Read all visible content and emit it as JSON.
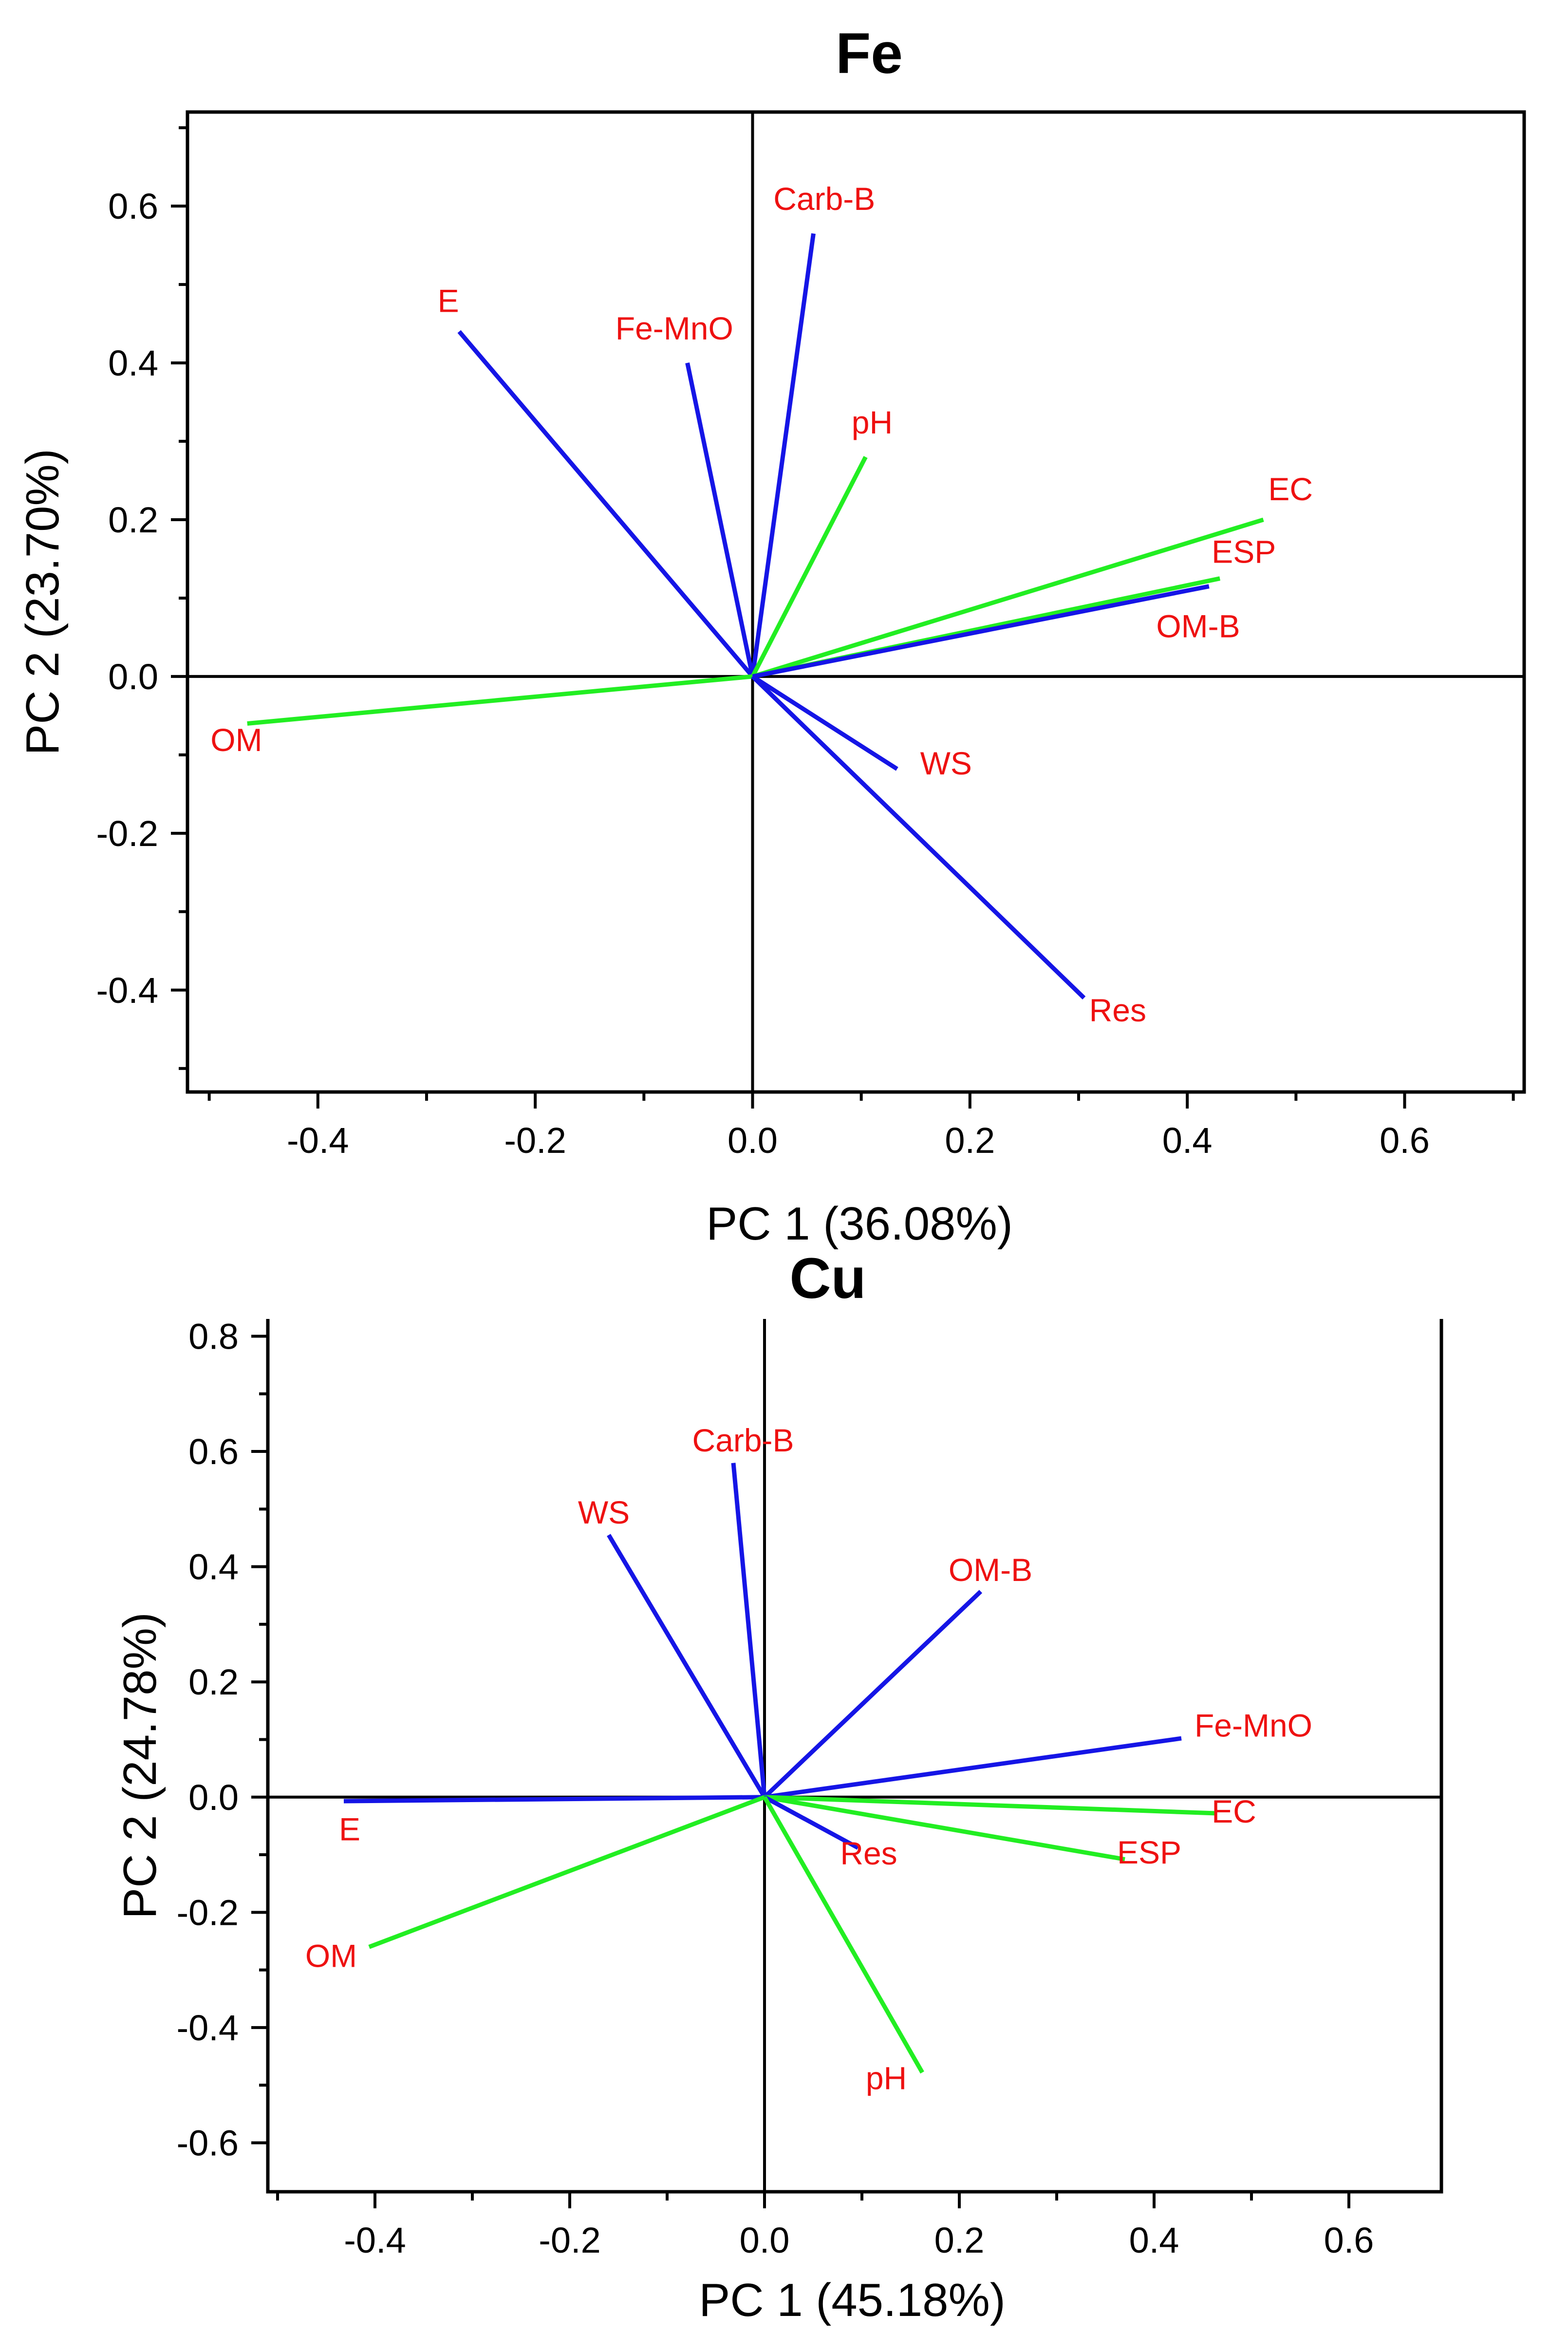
{
  "chart_data": [
    {
      "type": "biplot",
      "title": "Fe",
      "xlabel": "PC 1 (36.08%)",
      "ylabel": "PC 2 (23.70%)",
      "xlim": [
        -0.52,
        0.71
      ],
      "ylim": [
        -0.53,
        0.72
      ],
      "xticks": [
        -0.4,
        -0.2,
        0.0,
        0.2,
        0.4,
        0.6
      ],
      "xtick_labels": [
        "-0.4",
        "-0.2",
        "0.0",
        "0.2",
        "0.4",
        "0.6"
      ],
      "yticks": [
        -0.4,
        -0.2,
        0.0,
        0.2,
        0.4,
        0.6
      ],
      "ytick_labels": [
        "-0.4",
        "-0.2",
        "0.0",
        "0.2",
        "0.4",
        "0.6"
      ],
      "colors": {
        "blue": "#1515e6",
        "green": "#22ee22",
        "label": "#ee1111"
      },
      "vectors": [
        {
          "name": "E",
          "x": -0.27,
          "y": 0.44,
          "color": "blue",
          "lx": -0.28,
          "ly": 0.465
        },
        {
          "name": "Fe-MnO",
          "x": -0.06,
          "y": 0.4,
          "color": "blue",
          "lx": -0.072,
          "ly": 0.43
        },
        {
          "name": "Carb-B",
          "x": 0.056,
          "y": 0.565,
          "color": "blue",
          "lx": 0.066,
          "ly": 0.595
        },
        {
          "name": "pH",
          "x": 0.104,
          "y": 0.28,
          "color": "green",
          "lx": 0.11,
          "ly": 0.31
        },
        {
          "name": "EC",
          "x": 0.47,
          "y": 0.2,
          "color": "green",
          "lx": 0.495,
          "ly": 0.225
        },
        {
          "name": "ESP",
          "x": 0.43,
          "y": 0.125,
          "color": "green",
          "lx": 0.452,
          "ly": 0.145
        },
        {
          "name": "OM-B",
          "x": 0.42,
          "y": 0.115,
          "color": "blue",
          "lx": 0.41,
          "ly": 0.05
        },
        {
          "name": "OM",
          "x": -0.465,
          "y": -0.06,
          "color": "green",
          "lx": -0.475,
          "ly": -0.095
        },
        {
          "name": "WS",
          "x": 0.133,
          "y": -0.118,
          "color": "blue",
          "lx": 0.178,
          "ly": -0.125
        },
        {
          "name": "Res",
          "x": 0.305,
          "y": -0.41,
          "color": "blue",
          "lx": 0.336,
          "ly": -0.44
        }
      ]
    },
    {
      "type": "biplot",
      "title": "Cu",
      "xlabel": "PC 1 (45.18%)",
      "ylabel": "PC 2 (24.78%)",
      "xlim": [
        -0.51,
        0.695
      ],
      "ylim": [
        -0.685,
        0.83
      ],
      "xticks": [
        -0.4,
        -0.2,
        0.0,
        0.2,
        0.4,
        0.6
      ],
      "xtick_labels": [
        "-0.4",
        "-0.2",
        "0.0",
        "0.2",
        "0.4",
        "0.6"
      ],
      "yticks": [
        -0.6,
        -0.4,
        -0.2,
        0.0,
        0.2,
        0.4,
        0.6,
        0.8
      ],
      "ytick_labels": [
        "-0.6",
        "-0.4",
        "-0.2",
        "0.0",
        "0.2",
        "0.4",
        "0.6",
        "0.8"
      ],
      "colors": {
        "blue": "#1515e6",
        "green": "#22ee22",
        "label": "#ee1111"
      },
      "vectors": [
        {
          "name": "Carb-B",
          "x": -0.032,
          "y": 0.58,
          "color": "blue",
          "lx": -0.022,
          "ly": 0.6
        },
        {
          "name": "WS",
          "x": -0.16,
          "y": 0.455,
          "color": "blue",
          "lx": -0.165,
          "ly": 0.475
        },
        {
          "name": "OM-B",
          "x": 0.222,
          "y": 0.357,
          "color": "blue",
          "lx": 0.232,
          "ly": 0.375
        },
        {
          "name": "Fe-MnO",
          "x": 0.428,
          "y": 0.102,
          "color": "blue",
          "lx": 0.502,
          "ly": 0.105
        },
        {
          "name": "EC",
          "x": 0.462,
          "y": -0.028,
          "color": "green",
          "lx": 0.482,
          "ly": -0.044
        },
        {
          "name": "ESP",
          "x": 0.37,
          "y": -0.108,
          "color": "green",
          "lx": 0.395,
          "ly": -0.115
        },
        {
          "name": "Res",
          "x": 0.096,
          "y": -0.088,
          "color": "blue",
          "lx": 0.107,
          "ly": -0.117
        },
        {
          "name": "pH",
          "x": 0.162,
          "y": -0.478,
          "color": "green",
          "lx": 0.125,
          "ly": -0.507
        },
        {
          "name": "E",
          "x": -0.432,
          "y": -0.007,
          "color": "blue",
          "lx": -0.426,
          "ly": -0.075
        },
        {
          "name": "OM",
          "x": -0.406,
          "y": -0.26,
          "color": "green",
          "lx": -0.445,
          "ly": -0.295
        }
      ]
    }
  ]
}
